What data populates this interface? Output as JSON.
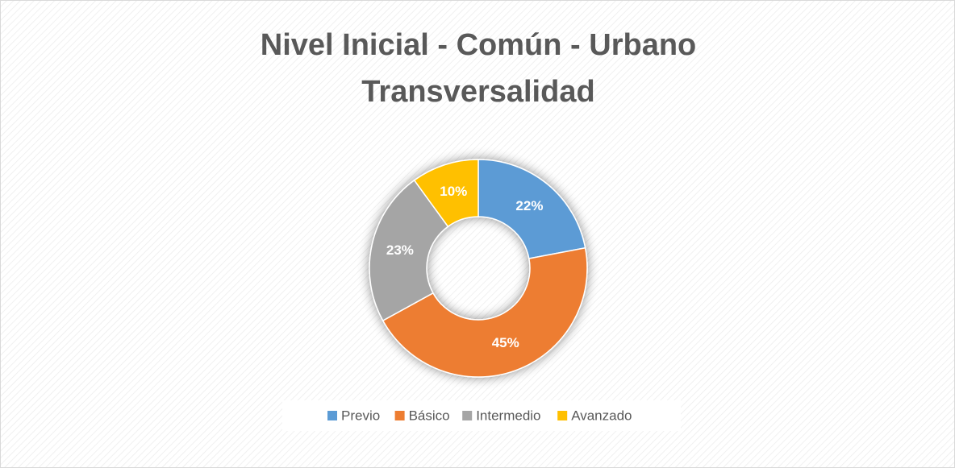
{
  "chart_data": {
    "type": "donut",
    "title": [
      "Nivel Inicial - Común - Urbano",
      "Transversalidad"
    ],
    "categories": [
      "Previo",
      "Básico",
      "Intermedio",
      "Avanzado"
    ],
    "values": [
      22,
      45,
      23,
      10
    ],
    "value_labels": [
      "22%",
      "45%",
      "23%",
      "10%"
    ],
    "colors": [
      "#5b9bd5",
      "#ed7d31",
      "#a5a5a5",
      "#ffc000"
    ],
    "legend": "bottom"
  }
}
